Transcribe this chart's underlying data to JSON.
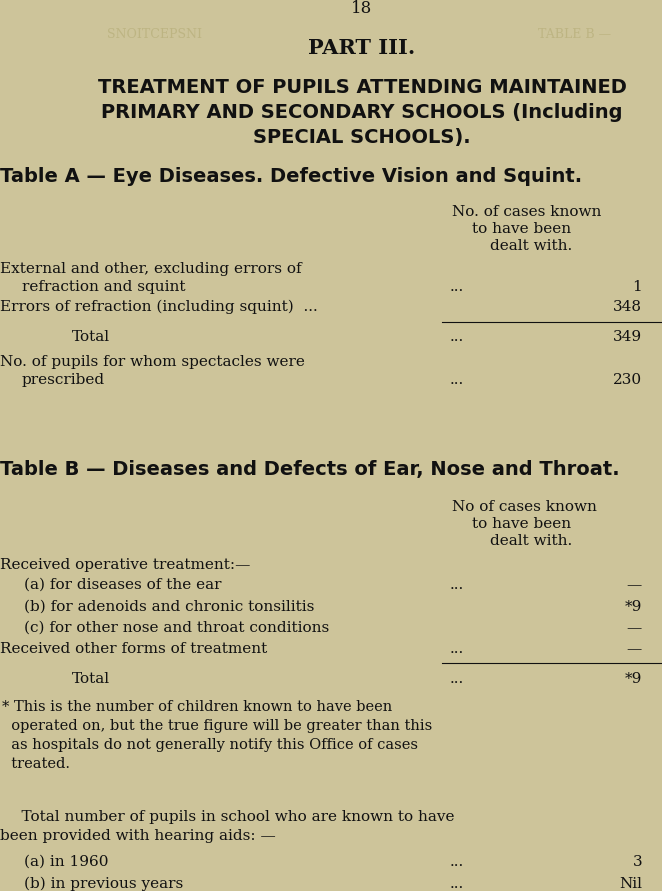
{
  "bg_color": "#cdc49a",
  "text_color": "#111111",
  "page_number": "18",
  "part_title": "PART III.",
  "main_title_line1": "TREATMENT OF PUPILS ATTENDING MAINTAINED",
  "main_title_line2": "PRIMARY AND SECONDARY SCHOOLS (Including",
  "main_title_line3": "SPECIAL SCHOOLS).",
  "table_a_header": "Table A — Eye Diseases. Defective Vision and Squint.",
  "table_b_header": "Table B — Diseases and Defects of Ear, Nose and Throat.",
  "watermark_left": "SNOITCEPSNI",
  "watermark_right": "TABLE B —",
  "footnote_lines": [
    "* This is the number of children known to have been",
    "  operated on, but the true figure will be greater than this",
    "  as hospitals do not generally notify this Office of cases",
    "  treated."
  ],
  "hearing_intro_1": "    Total number of pupils in school who are known to have",
  "hearing_intro_2": "been provided with hearing aids: —"
}
